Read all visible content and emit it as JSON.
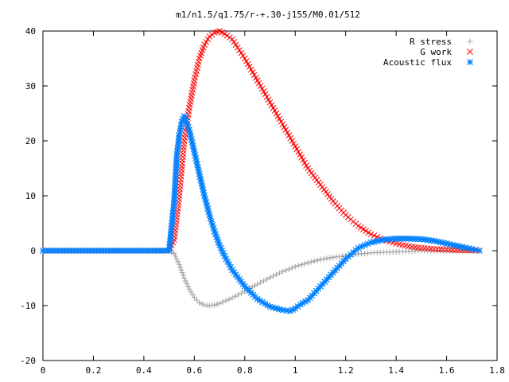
{
  "chart_data": {
    "type": "scatter",
    "title": "m1/n1.5/q1.75/r-+.30-j155/M0.01/512",
    "xlabel": "",
    "ylabel": "",
    "xlim": [
      0,
      1.8
    ],
    "ylim": [
      -20,
      40
    ],
    "xticks": [
      "0",
      "0.2",
      "0.4",
      "0.6",
      "0.8",
      "1",
      "1.2",
      "1.4",
      "1.6",
      "1.8"
    ],
    "yticks": [
      "-20",
      "-10",
      "0",
      "10",
      "20",
      "30",
      "40"
    ],
    "grid": false,
    "legend_position": "top-right",
    "series": [
      {
        "name": "R stress",
        "marker": "plus",
        "color": "#a0a0a0",
        "x": [
          0.0,
          0.1,
          0.2,
          0.3,
          0.4,
          0.5,
          0.52,
          0.54,
          0.56,
          0.58,
          0.6,
          0.62,
          0.64,
          0.66,
          0.68,
          0.7,
          0.75,
          0.8,
          0.85,
          0.9,
          0.95,
          1.0,
          1.05,
          1.1,
          1.15,
          1.2,
          1.25,
          1.3,
          1.35,
          1.4,
          1.45,
          1.5,
          1.55,
          1.6,
          1.65,
          1.7,
          1.73
        ],
        "y": [
          0,
          0,
          0,
          0,
          0,
          0,
          -0.5,
          -2.5,
          -5,
          -7,
          -8.5,
          -9.5,
          -9.9,
          -10,
          -9.9,
          -9.6,
          -8.6,
          -7.4,
          -6.1,
          -4.9,
          -3.8,
          -2.9,
          -2.2,
          -1.6,
          -1.2,
          -0.9,
          -0.6,
          -0.4,
          -0.3,
          -0.2,
          -0.1,
          0,
          0,
          0,
          0,
          0,
          0
        ]
      },
      {
        "name": "G work",
        "marker": "cross",
        "color": "#ff0000",
        "x": [
          0.0,
          0.1,
          0.2,
          0.3,
          0.4,
          0.5,
          0.52,
          0.54,
          0.56,
          0.58,
          0.6,
          0.62,
          0.64,
          0.66,
          0.68,
          0.7,
          0.72,
          0.75,
          0.8,
          0.85,
          0.9,
          0.95,
          1.0,
          1.05,
          1.1,
          1.15,
          1.2,
          1.25,
          1.3,
          1.35,
          1.4,
          1.45,
          1.5,
          1.55,
          1.6,
          1.65,
          1.7,
          1.73
        ],
        "y": [
          0,
          0,
          0,
          0,
          0,
          0,
          2,
          10,
          20,
          26,
          31,
          35,
          37.5,
          39,
          39.7,
          40,
          39.5,
          38.5,
          35,
          31,
          27,
          23,
          19,
          15,
          12,
          9,
          6.5,
          4.5,
          3,
          2,
          1.3,
          0.8,
          0.5,
          0.3,
          0.2,
          0.1,
          0.05,
          0
        ]
      },
      {
        "name": "Acoustic flux",
        "marker": "star",
        "color": "#0080ff",
        "x": [
          0.0,
          0.1,
          0.2,
          0.3,
          0.4,
          0.5,
          0.52,
          0.53,
          0.54,
          0.55,
          0.56,
          0.58,
          0.6,
          0.62,
          0.64,
          0.66,
          0.68,
          0.7,
          0.72,
          0.75,
          0.8,
          0.85,
          0.9,
          0.95,
          0.98,
          1.0,
          1.02,
          1.05,
          1.1,
          1.15,
          1.2,
          1.25,
          1.3,
          1.35,
          1.4,
          1.45,
          1.5,
          1.55,
          1.6,
          1.65,
          1.7,
          1.73
        ],
        "y": [
          0,
          0,
          0,
          0,
          0,
          0,
          9,
          17,
          21,
          23.5,
          24.5,
          22,
          18,
          14,
          10,
          6.5,
          3.5,
          1,
          -1,
          -3.5,
          -6.5,
          -8.8,
          -10.2,
          -10.8,
          -11,
          -10.5,
          -9.8,
          -9,
          -6.5,
          -4,
          -1.5,
          0.5,
          1.5,
          2,
          2.2,
          2.2,
          2.1,
          1.8,
          1.3,
          0.8,
          0.3,
          0
        ]
      }
    ]
  }
}
